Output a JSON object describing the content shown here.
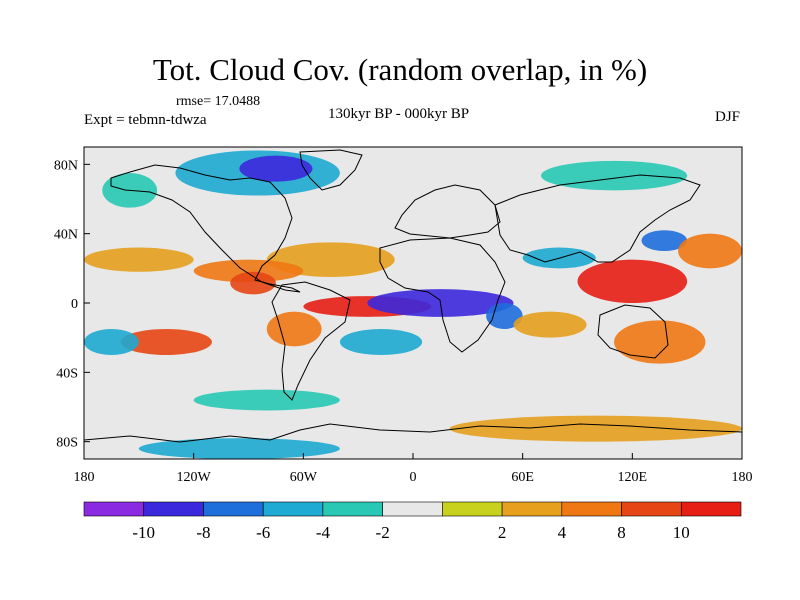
{
  "figure": {
    "title": "Tot. Cloud Cov. (random overlap, in %)",
    "rmse_label": "rmse= 17.0488",
    "experiment_label": "Expt = tebmn-tdwza",
    "period_label": "130kyr BP - 000kyr BP",
    "season_label": "DJF"
  },
  "map": {
    "projection": "cylindrical equidistant",
    "lon_range": [
      -180,
      180
    ],
    "lat_range": [
      -90,
      90
    ],
    "x_ticks": [
      {
        "lon": -180,
        "label": "180"
      },
      {
        "lon": -120,
        "label": "120W"
      },
      {
        "lon": -60,
        "label": "60W"
      },
      {
        "lon": 0,
        "label": "0"
      },
      {
        "lon": 60,
        "label": "60E"
      },
      {
        "lon": 120,
        "label": "120E"
      },
      {
        "lon": 180,
        "label": "180"
      }
    ],
    "y_ticks": [
      {
        "lat": 80,
        "label": "80N"
      },
      {
        "lat": 40,
        "label": "40N"
      },
      {
        "lat": 0,
        "label": "0"
      },
      {
        "lat": -40,
        "label": "40S"
      },
      {
        "lat": -80,
        "label": "80S"
      }
    ],
    "background_color": "#e8e8e8"
  },
  "anomaly_regions": [
    {
      "name": "arctic-canada-negative",
      "lon": [
        -130,
        -40
      ],
      "lat": [
        62,
        88
      ],
      "level": -5
    },
    {
      "name": "greenland-strong-negative",
      "lon": [
        -95,
        -55
      ],
      "lat": [
        70,
        85
      ],
      "level": -9
    },
    {
      "name": "alaska-negative",
      "lon": [
        -170,
        -140
      ],
      "lat": [
        55,
        75
      ],
      "level": -4
    },
    {
      "name": "siberia-negative",
      "lon": [
        70,
        150
      ],
      "lat": [
        65,
        82
      ],
      "level": -3
    },
    {
      "name": "north-atlantic-positive",
      "lon": [
        -80,
        -10
      ],
      "lat": [
        15,
        35
      ],
      "level": 5
    },
    {
      "name": "north-pacific-positive",
      "lon": [
        -180,
        -120
      ],
      "lat": [
        18,
        32
      ],
      "level": 4
    },
    {
      "name": "pacific-band-positive",
      "lon": [
        -120,
        -60
      ],
      "lat": [
        12,
        25
      ],
      "level": 6
    },
    {
      "name": "central-america-positive",
      "lon": [
        -100,
        -75
      ],
      "lat": [
        5,
        18
      ],
      "level": 8
    },
    {
      "name": "tropical-atlantic-red",
      "lon": [
        -60,
        10
      ],
      "lat": [
        -8,
        4
      ],
      "level": 10
    },
    {
      "name": "south-america-positive",
      "lon": [
        -80,
        -50
      ],
      "lat": [
        -25,
        -5
      ],
      "level": 6
    },
    {
      "name": "africa-equatorial-strong-negative",
      "lon": [
        -25,
        55
      ],
      "lat": [
        -8,
        8
      ],
      "level": -10
    },
    {
      "name": "east-africa-negative",
      "lon": [
        40,
        60
      ],
      "lat": [
        -15,
        0
      ],
      "level": -7
    },
    {
      "name": "south-atlantic-negative",
      "lon": [
        -40,
        5
      ],
      "lat": [
        -30,
        -15
      ],
      "level": -5
    },
    {
      "name": "indian-ocean-positive",
      "lon": [
        55,
        95
      ],
      "lat": [
        -20,
        -5
      ],
      "level": 4
    },
    {
      "name": "india-negative",
      "lon": [
        60,
        100
      ],
      "lat": [
        20,
        32
      ],
      "level": -6
    },
    {
      "name": "east-asia-red",
      "lon": [
        90,
        150
      ],
      "lat": [
        0,
        25
      ],
      "level": 10
    },
    {
      "name": "japan-negative",
      "lon": [
        125,
        150
      ],
      "lat": [
        30,
        42
      ],
      "level": -8
    },
    {
      "name": "kuroshio-positive",
      "lon": [
        145,
        180
      ],
      "lat": [
        20,
        40
      ],
      "level": 7
    },
    {
      "name": "australia-positive",
      "lon": [
        110,
        160
      ],
      "lat": [
        -35,
        -10
      ],
      "level": 6
    },
    {
      "name": "southeast-pacific-red",
      "lon": [
        -160,
        -110
      ],
      "lat": [
        -30,
        -15
      ],
      "level": 9
    },
    {
      "name": "south-pacific-negative",
      "lon": [
        -180,
        -150
      ],
      "lat": [
        -30,
        -15
      ],
      "level": -5
    },
    {
      "name": "southern-ocean-negative",
      "lon": [
        -120,
        -40
      ],
      "lat": [
        -62,
        -50
      ],
      "level": -4
    },
    {
      "name": "southern-ocean-east-positive",
      "lon": [
        20,
        180
      ],
      "lat": [
        -80,
        -65
      ],
      "level": 4
    },
    {
      "name": "antarctica-negative",
      "lon": [
        -150,
        -40
      ],
      "lat": [
        -90,
        -78
      ],
      "level": -6
    }
  ],
  "colorbar": {
    "colors": [
      "#8a2be2",
      "#3c28dc",
      "#1e6edc",
      "#1eaad2",
      "#28c8b4",
      "#e8e8e8",
      "#c8d21e",
      "#e6a01e",
      "#f07814",
      "#e64614",
      "#e61e14"
    ],
    "labels": [
      "-10",
      "-8",
      "-6",
      "-4",
      "-2",
      "2",
      "4",
      "8",
      "10"
    ]
  }
}
